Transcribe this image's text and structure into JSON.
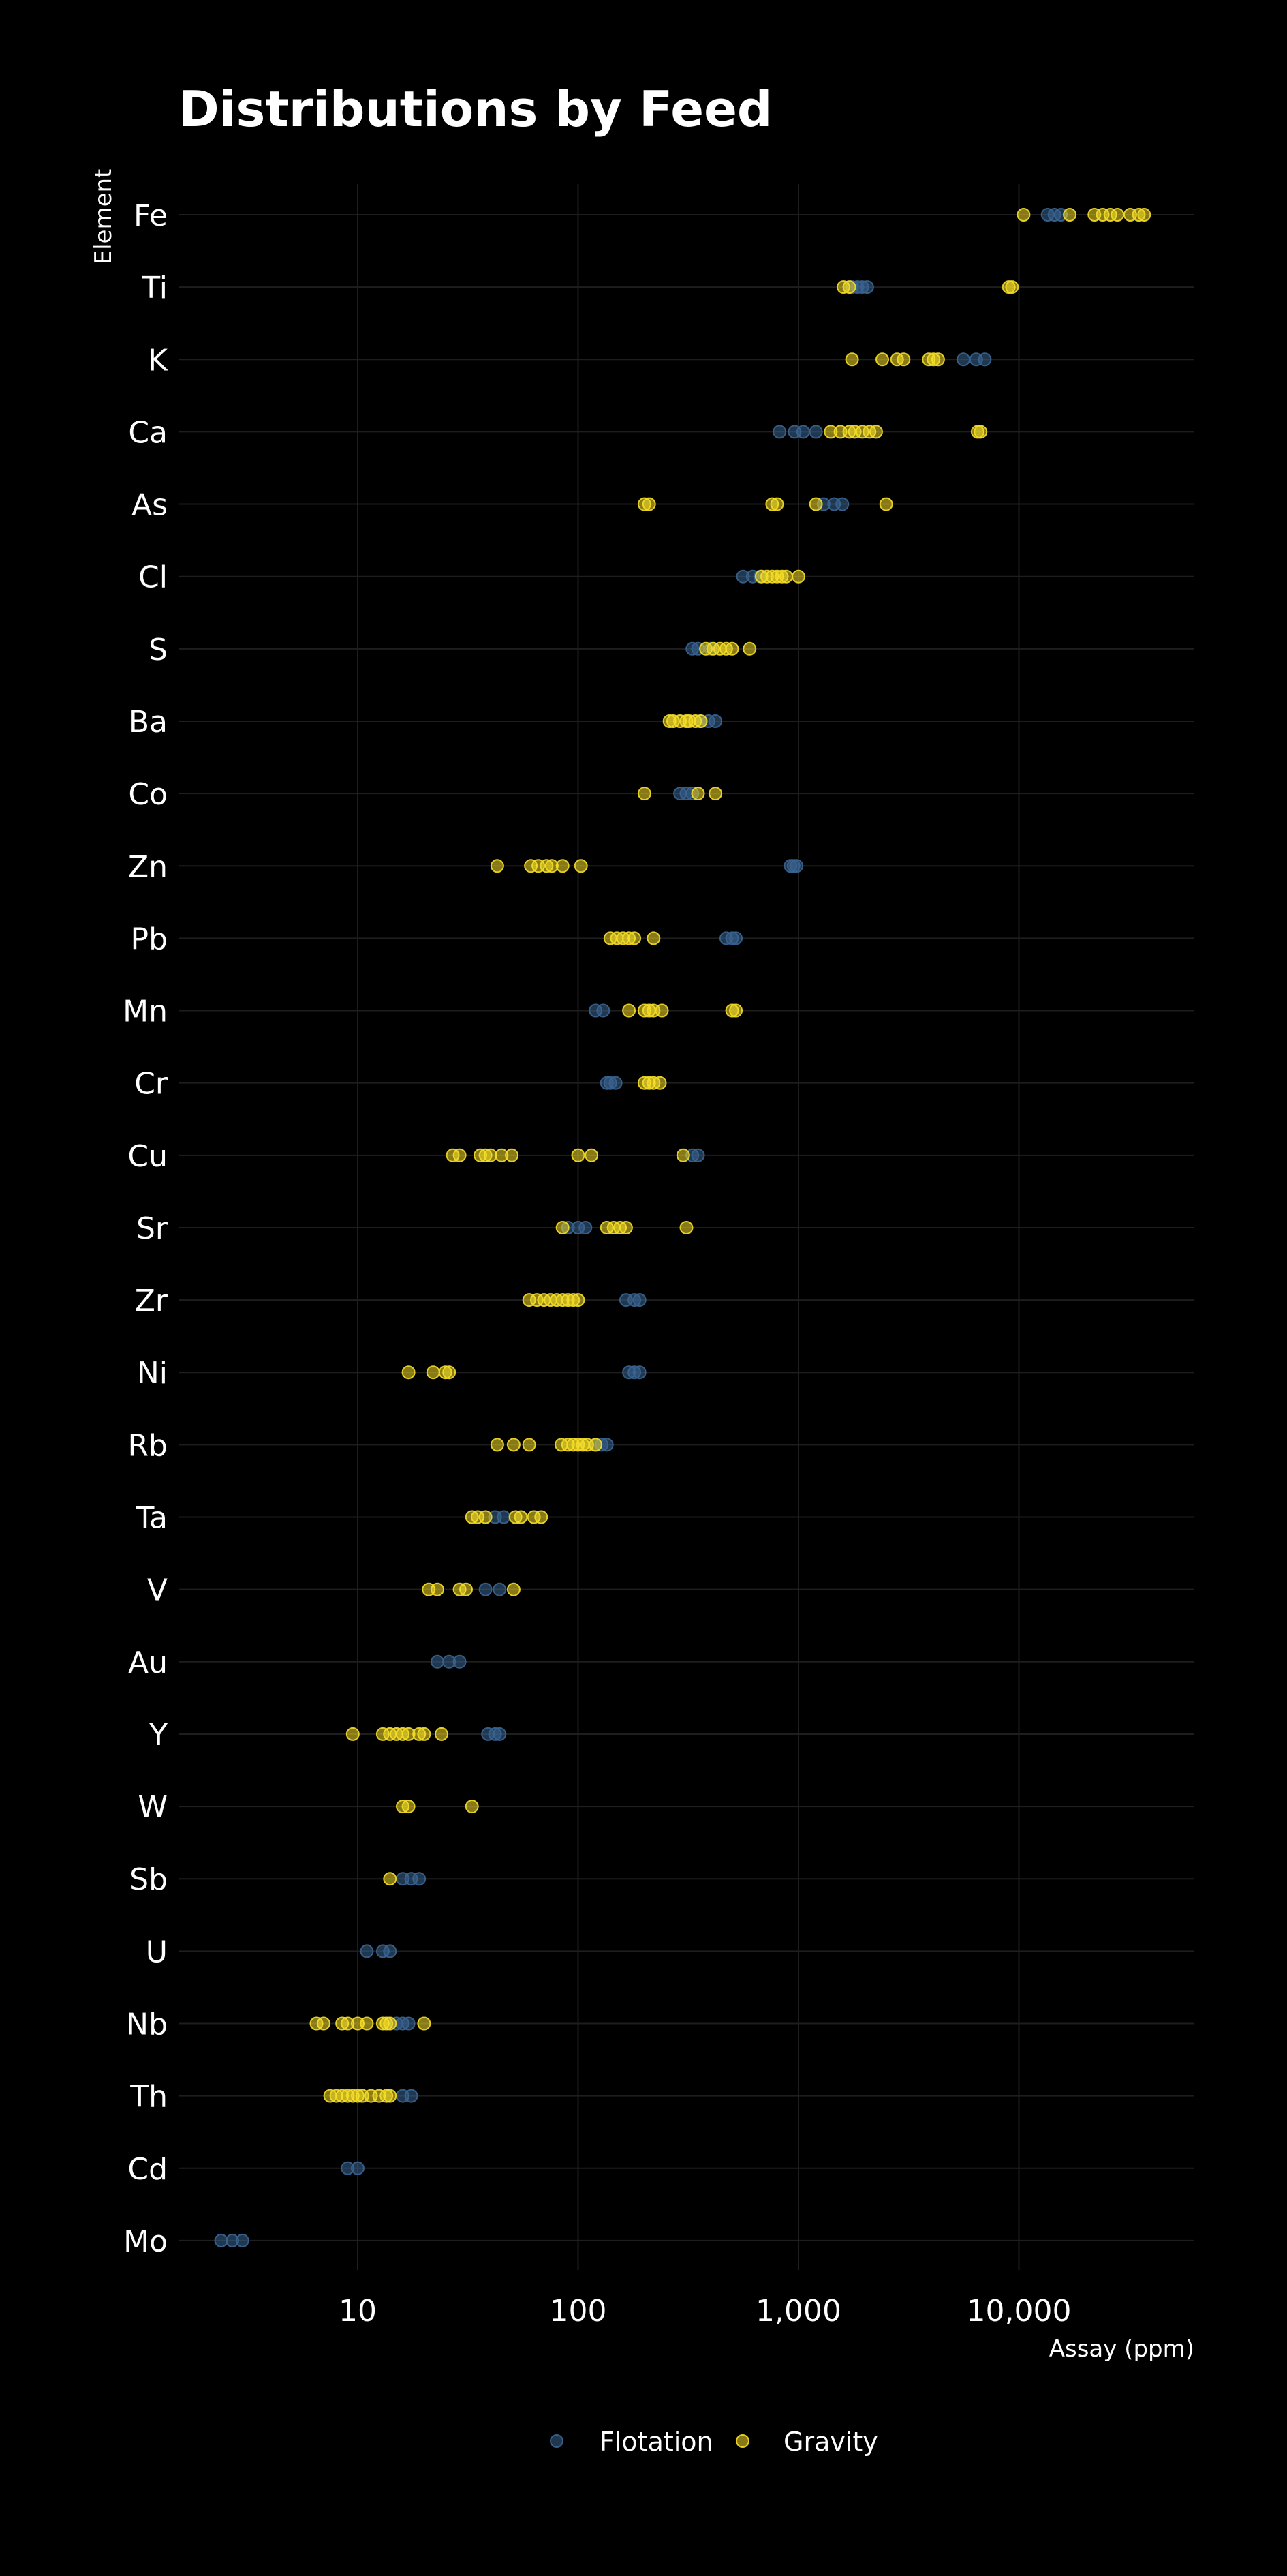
{
  "chart_data": {
    "type": "scatter",
    "title": "Distributions by Feed",
    "xlabel": "Assay (ppm)",
    "ylabel": "Element",
    "x_scale": "log10",
    "xlim": [
      2,
      60000
    ],
    "x_ticks": [
      10,
      100,
      1000,
      10000
    ],
    "x_tick_labels": [
      "10",
      "100",
      "1,000",
      "10,000"
    ],
    "grid": true,
    "legend_position": "bottom",
    "categories": [
      "Fe",
      "Ti",
      "K",
      "Ca",
      "As",
      "Cl",
      "S",
      "Ba",
      "Co",
      "Zn",
      "Pb",
      "Mn",
      "Cr",
      "Cu",
      "Sr",
      "Zr",
      "Ni",
      "Rb",
      "Ta",
      "V",
      "Au",
      "Y",
      "W",
      "Sb",
      "U",
      "Nb",
      "Th",
      "Cd",
      "Mo"
    ],
    "series": [
      {
        "name": "Flotation",
        "color": "#3a6591",
        "points": {
          "Fe": [
            13500,
            14500,
            15500
          ],
          "Ti": [
            1750,
            1850,
            1950,
            2050
          ],
          "K": [
            5600,
            6400,
            7000
          ],
          "Ca": [
            820,
            960,
            1050,
            1200
          ],
          "As": [
            1300,
            1450,
            1580
          ],
          "Cl": [
            560,
            620,
            670
          ],
          "S": [
            330,
            350,
            400
          ],
          "Ba": [
            360,
            390,
            420
          ],
          "Co": [
            290,
            310,
            330
          ],
          "Zn": [
            920,
            950,
            980
          ],
          "Pb": [
            470,
            500,
            520
          ],
          "Mn": [
            120,
            130
          ],
          "Cr": [
            135,
            140,
            148
          ],
          "Cu": [
            330,
            350
          ],
          "Sr": [
            90,
            100,
            108
          ],
          "Zr": [
            165,
            180,
            190
          ],
          "Ni": [
            170,
            180,
            190
          ],
          "Rb": [
            120,
            128,
            135
          ],
          "Ta": [
            42,
            46
          ],
          "V": [
            38,
            44
          ],
          "Au": [
            23,
            26,
            29
          ],
          "Y": [
            39,
            42,
            44
          ],
          "W": [],
          "Sb": [
            16,
            17.5,
            19
          ],
          "U": [
            11,
            13,
            14
          ],
          "Nb": [
            15,
            16,
            17
          ],
          "Th": [
            16,
            17.5
          ],
          "Cd": [
            9,
            10
          ],
          "Mo": [
            2.4,
            2.7,
            3.0
          ]
        }
      },
      {
        "name": "Gravity",
        "color": "#f5de28",
        "points": {
          "Fe": [
            10500,
            17000,
            22000,
            24000,
            26000,
            28000,
            32000,
            35000,
            37000
          ],
          "Ti": [
            1600,
            1700,
            9000,
            9300
          ],
          "K": [
            1750,
            2400,
            2800,
            3000,
            3900,
            4100,
            4300
          ],
          "Ca": [
            1400,
            1550,
            1700,
            1800,
            1950,
            2100,
            2250,
            6500,
            6700
          ],
          "As": [
            200,
            210,
            760,
            800,
            1200,
            2500
          ],
          "Cl": [
            680,
            720,
            760,
            800,
            840,
            880,
            1000
          ],
          "S": [
            380,
            410,
            440,
            470,
            500,
            600
          ],
          "Ba": [
            260,
            270,
            290,
            310,
            320,
            340,
            360
          ],
          "Co": [
            200,
            350,
            420
          ],
          "Zn": [
            43,
            61,
            66,
            72,
            76,
            85,
            103
          ],
          "Pb": [
            140,
            150,
            160,
            170,
            180,
            220
          ],
          "Mn": [
            170,
            200,
            210,
            220,
            240,
            500,
            520
          ],
          "Cr": [
            200,
            210,
            220,
            235
          ],
          "Cu": [
            27,
            29,
            36,
            38,
            40,
            45,
            50,
            100,
            115,
            300
          ],
          "Sr": [
            85,
            135,
            145,
            155,
            165,
            310
          ],
          "Zr": [
            60,
            65,
            70,
            75,
            80,
            85,
            90,
            95,
            100
          ],
          "Ni": [
            17,
            22,
            25,
            26
          ],
          "Rb": [
            43,
            51,
            60,
            84,
            90,
            95,
            100,
            105,
            110,
            120
          ],
          "Ta": [
            33,
            35,
            38,
            52,
            55,
            63,
            68
          ],
          "V": [
            21,
            23,
            29,
            31,
            51
          ],
          "Au": [],
          "Y": [
            9.5,
            13,
            14,
            15,
            16,
            17,
            19,
            20,
            24
          ],
          "W": [
            16,
            17,
            33
          ],
          "Sb": [
            14
          ],
          "U": [],
          "Nb": [
            6.5,
            7,
            8.5,
            9,
            10,
            11,
            13,
            13.5,
            14,
            20
          ],
          "Th": [
            7.5,
            8,
            8.5,
            9,
            9.5,
            10,
            10.5,
            11.5,
            12.5,
            13.5,
            14
          ],
          "Cd": [],
          "Mo": []
        }
      }
    ]
  }
}
